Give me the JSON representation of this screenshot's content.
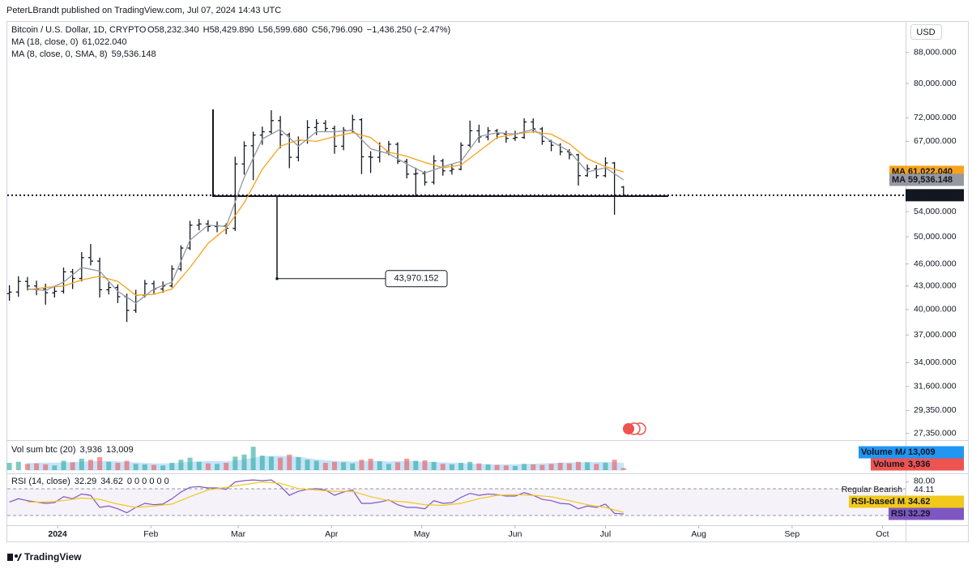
{
  "header": {
    "title": "PeterLBrandt published on TradingView.com, Jul 07, 2024 14:43 UTC"
  },
  "footer": {
    "brand": "TradingView"
  },
  "chart_data": [
    {
      "type": "ohlc",
      "title": "Bitcoin / U.S. Dollar, 1D, CRYPTO",
      "legend_values": [
        "O58,232.340",
        "H58,429.890",
        "L56,599.680",
        "C56,796.090",
        "−1,436.250 (−2.47%)"
      ],
      "unit": "USD",
      "color": "#131722",
      "log_scale": true,
      "last_label": "56,796.090",
      "xlim": [
        -16.7,
        281.7
      ],
      "xticks": [
        {
          "value": 0,
          "label": "2024"
        },
        {
          "value": 31,
          "label": "Feb"
        },
        {
          "value": 60,
          "label": "Mar"
        },
        {
          "value": 91,
          "label": "Apr"
        },
        {
          "value": 121,
          "label": "May"
        },
        {
          "value": 152,
          "label": "Jun"
        },
        {
          "value": 182,
          "label": "Jul"
        },
        {
          "value": 213,
          "label": "Aug"
        },
        {
          "value": 244,
          "label": "Sep"
        },
        {
          "value": 274,
          "label": "Oct"
        }
      ],
      "ylim": [
        27000,
        96400
      ],
      "yticks": [
        {
          "value": 88000,
          "label": "88,000.000"
        },
        {
          "value": 80000,
          "label": "80,000.000"
        },
        {
          "value": 72000,
          "label": "72,000.000"
        },
        {
          "value": 67000,
          "label": "67,000.000"
        },
        {
          "value": 54000,
          "label": "54,000.000"
        },
        {
          "value": 50000,
          "label": "50,000.000"
        },
        {
          "value": 46000,
          "label": "46,000.000"
        },
        {
          "value": 43000,
          "label": "43,000.000"
        },
        {
          "value": 40000,
          "label": "40,000.000"
        },
        {
          "value": 37000,
          "label": "37,000.000"
        },
        {
          "value": 34000,
          "label": "34,000.000"
        },
        {
          "value": 31600,
          "label": "31,600.000"
        },
        {
          "value": 29350,
          "label": "29,350.000"
        },
        {
          "value": 27350,
          "label": "27,350.000"
        }
      ],
      "x": [
        -16,
        -13,
        -10,
        -7,
        -4,
        -1,
        2,
        5,
        8,
        11,
        14,
        17,
        20,
        23,
        26,
        29,
        32,
        35,
        38,
        41,
        44,
        47,
        50,
        53,
        56,
        59,
        62,
        65,
        68,
        71,
        74,
        77,
        80,
        83,
        86,
        89,
        92,
        95,
        98,
        101,
        104,
        107,
        110,
        113,
        116,
        119,
        122,
        125,
        128,
        131,
        134,
        137,
        140,
        143,
        146,
        149,
        152,
        155,
        158,
        161,
        164,
        167,
        170,
        173,
        176,
        179,
        182,
        185,
        188
      ],
      "open": [
        42000,
        42200,
        43600,
        43000,
        42600,
        42100,
        42300,
        44900,
        44000,
        46900,
        46400,
        42500,
        42800,
        41600,
        39900,
        41800,
        43300,
        42600,
        43000,
        45300,
        48300,
        51800,
        52000,
        51600,
        51700,
        51300,
        62500,
        66100,
        68300,
        69000,
        71400,
        68400,
        63800,
        67200,
        69900,
        70800,
        69700,
        66000,
        69300,
        71600,
        63900,
        63800,
        64900,
        66400,
        63000,
        60600,
        60700,
        59100,
        63100,
        61200,
        61500,
        66200,
        69200,
        67900,
        69200,
        68500,
        67600,
        67800,
        71100,
        69600,
        67000,
        66200,
        64900,
        64300,
        60300,
        61600,
        60300,
        62700,
        58232.34
      ],
      "high": [
        43100,
        44300,
        44200,
        43700,
        43300,
        43000,
        45500,
        45300,
        47700,
        48900,
        46900,
        43500,
        43200,
        42000,
        42500,
        43800,
        43700,
        43600,
        45800,
        48700,
        52500,
        52800,
        52600,
        52400,
        52100,
        63900,
        67000,
        69000,
        70100,
        73700,
        72400,
        68800,
        68000,
        71500,
        71700,
        71500,
        70300,
        70000,
        72700,
        71900,
        65000,
        66800,
        67100,
        66800,
        63500,
        61800,
        61200,
        64200,
        63500,
        62400,
        66800,
        71400,
        70500,
        70000,
        69600,
        69200,
        69200,
        71900,
        71900,
        70000,
        67300,
        66600,
        65400,
        64500,
        62400,
        62300,
        63800,
        62900,
        58429.89
      ],
      "low": [
        41100,
        41600,
        42400,
        41800,
        40600,
        41500,
        42000,
        42600,
        43600,
        45800,
        41500,
        41900,
        40800,
        38500,
        39600,
        41500,
        42000,
        42100,
        42800,
        45000,
        48000,
        51000,
        50800,
        50700,
        50400,
        50900,
        60500,
        59500,
        66300,
        68500,
        65600,
        61700,
        63000,
        66500,
        68300,
        69000,
        64500,
        65200,
        68800,
        60600,
        60800,
        62800,
        64200,
        62500,
        59800,
        56600,
        58500,
        58700,
        60300,
        60500,
        61300,
        65800,
        66700,
        67200,
        67500,
        66700,
        67100,
        67500,
        68800,
        66300,
        65000,
        64200,
        63400,
        58500,
        60100,
        59800,
        60000,
        53500,
        56599.68
      ],
      "close": [
        42200,
        43600,
        43000,
        42600,
        42100,
        42300,
        44900,
        44000,
        46900,
        46400,
        42500,
        42800,
        41600,
        39900,
        41800,
        43300,
        42600,
        43000,
        45300,
        48300,
        51800,
        52000,
        51600,
        51700,
        51300,
        62500,
        66100,
        68300,
        69000,
        71400,
        68400,
        63800,
        67200,
        69900,
        70800,
        69700,
        66000,
        69300,
        71600,
        63900,
        63800,
        64900,
        66400,
        63000,
        60600,
        60700,
        59100,
        63100,
        61200,
        61500,
        66200,
        69200,
        67900,
        69200,
        68500,
        67600,
        67800,
        71100,
        69600,
        67000,
        66200,
        64900,
        64300,
        60300,
        61600,
        60300,
        62700,
        56700,
        56796.09
      ],
      "series": [
        {
          "name": "MA (18, close, 0)",
          "badge": "MA",
          "color": "#f7a21b",
          "last_label": "61,022.040",
          "x": [
            -10,
            -4,
            2,
            8,
            14,
            20,
            26,
            32,
            38,
            44,
            50,
            56,
            62,
            68,
            74,
            80,
            86,
            92,
            98,
            104,
            110,
            116,
            122,
            128,
            134,
            140,
            146,
            152,
            158,
            164,
            170,
            176,
            182,
            188
          ],
          "values": [
            42500,
            42800,
            43000,
            43800,
            44300,
            43600,
            41800,
            41900,
            42600,
            45500,
            49000,
            51300,
            55500,
            61500,
            66000,
            67300,
            67000,
            68000,
            68800,
            67800,
            64800,
            64000,
            62800,
            61800,
            62300,
            65000,
            67800,
            68500,
            69000,
            68500,
            66500,
            63500,
            62000,
            61022.04
          ]
        },
        {
          "name": "MA (8, close, 0, SMA, 8)",
          "badge": "MA",
          "color": "#9598a1",
          "last_label": "59,536.148",
          "x": [
            -10,
            -4,
            2,
            8,
            14,
            20,
            26,
            32,
            38,
            44,
            50,
            56,
            62,
            68,
            74,
            80,
            86,
            92,
            98,
            104,
            110,
            116,
            122,
            128,
            134,
            140,
            146,
            152,
            158,
            164,
            170,
            176,
            182,
            188
          ],
          "values": [
            42600,
            42400,
            43500,
            45500,
            45000,
            42300,
            40800,
            42600,
            43500,
            49500,
            51800,
            51600,
            60000,
            67500,
            69500,
            66000,
            69000,
            69000,
            69300,
            65500,
            64500,
            62500,
            60800,
            62000,
            63000,
            68000,
            68800,
            68500,
            69500,
            67000,
            65000,
            61000,
            61800,
            59536.148
          ]
        }
      ],
      "annotations": [
        {
          "label": "43,970.152",
          "value": 43970.152
        }
      ]
    },
    {
      "type": "bar",
      "title": "Vol sum btc (20)",
      "ylim": [
        0,
        50000
      ],
      "up_color": "#26a69a",
      "x": [
        -16,
        -13,
        -10,
        -7,
        -4,
        -1,
        2,
        5,
        8,
        11,
        14,
        17,
        20,
        23,
        26,
        29,
        32,
        35,
        38,
        41,
        44,
        47,
        50,
        53,
        56,
        59,
        62,
        65,
        68,
        71,
        74,
        77,
        80,
        83,
        86,
        89,
        92,
        95,
        98,
        101,
        104,
        107,
        110,
        113,
        116,
        119,
        122,
        125,
        128,
        131,
        134,
        137,
        140,
        143,
        146,
        149,
        152,
        155,
        158,
        161,
        164,
        167,
        170,
        173,
        176,
        179,
        182,
        185,
        188
      ],
      "series": [
        {
          "name": "Volume",
          "color": "#ef5350",
          "last_label": "3,936",
          "values": [
            14000,
            16000,
            12000,
            13000,
            11000,
            9000,
            18000,
            15000,
            22000,
            20000,
            25000,
            16000,
            14000,
            18000,
            12000,
            11000,
            10000,
            9000,
            14000,
            20000,
            24000,
            16000,
            13000,
            12000,
            14000,
            26000,
            30000,
            45000,
            28000,
            26000,
            24000,
            30000,
            25000,
            20000,
            18000,
            14000,
            16000,
            15000,
            13000,
            20000,
            22000,
            17000,
            12000,
            15000,
            22000,
            18000,
            19000,
            16000,
            12000,
            11000,
            14000,
            16000,
            13000,
            11000,
            10000,
            9000,
            8000,
            12000,
            11000,
            10000,
            12000,
            14000,
            13000,
            16000,
            15000,
            12000,
            14000,
            20000,
            3936
          ]
        },
        {
          "name": "Volume MA",
          "color": "#2196f3",
          "last_label": "13,009",
          "x": [
            -10,
            -4,
            2,
            8,
            14,
            20,
            26,
            32,
            38,
            44,
            50,
            56,
            62,
            68,
            74,
            80,
            86,
            92,
            98,
            104,
            110,
            116,
            122,
            128,
            134,
            140,
            146,
            152,
            158,
            164,
            170,
            176,
            182,
            188
          ],
          "values": [
            13000,
            13500,
            14000,
            15500,
            17000,
            16000,
            14000,
            12000,
            12500,
            15000,
            17000,
            16000,
            20000,
            26000,
            27000,
            25000,
            20000,
            17000,
            16000,
            17000,
            16000,
            17000,
            15000,
            14000,
            13000,
            11000,
            10000,
            10500,
            11500,
            13000,
            14000,
            14500,
            15000,
            13009
          ]
        }
      ]
    },
    {
      "type": "line",
      "title": "RSI (14, close)",
      "legend_extra": "0 0 0 0 0 0",
      "ylim": [
        19,
        88
      ],
      "yticks": [
        {
          "value": 80,
          "label": "80.00"
        }
      ],
      "x": [
        -16,
        -13,
        -10,
        -7,
        -4,
        -1,
        2,
        5,
        8,
        11,
        14,
        17,
        20,
        23,
        26,
        29,
        32,
        35,
        38,
        41,
        44,
        47,
        50,
        53,
        56,
        59,
        62,
        65,
        68,
        71,
        74,
        77,
        80,
        83,
        86,
        89,
        92,
        95,
        98,
        101,
        104,
        107,
        110,
        113,
        116,
        119,
        122,
        125,
        128,
        131,
        134,
        137,
        140,
        143,
        146,
        149,
        152,
        155,
        158,
        161,
        164,
        167,
        170,
        173,
        176,
        179,
        182,
        185,
        188
      ],
      "series": [
        {
          "name": "RSI",
          "color": "#7e57c2",
          "values": [
            50,
            55,
            52,
            50,
            48,
            49,
            58,
            55,
            62,
            60,
            42,
            44,
            40,
            34,
            42,
            48,
            46,
            47,
            55,
            65,
            72,
            73,
            71,
            71,
            69,
            80,
            82,
            83,
            82,
            83,
            74,
            60,
            66,
            69,
            70,
            68,
            60,
            65,
            68,
            48,
            48,
            50,
            53,
            46,
            42,
            42,
            40,
            52,
            48,
            49,
            57,
            63,
            60,
            62,
            61,
            59,
            59,
            64,
            60,
            54,
            52,
            48,
            47,
            40,
            44,
            42,
            47,
            33,
            32.29
          ]
        },
        {
          "name": "RSI-based MA",
          "color": "#f2c81b",
          "x": [
            -10,
            -4,
            2,
            8,
            14,
            20,
            26,
            32,
            38,
            44,
            50,
            56,
            62,
            68,
            74,
            80,
            86,
            92,
            98,
            104,
            110,
            116,
            122,
            128,
            134,
            140,
            146,
            152,
            158,
            164,
            170,
            176,
            182,
            188
          ],
          "values": [
            50,
            50,
            52,
            56,
            54,
            47,
            42,
            44,
            47,
            58,
            68,
            72,
            76,
            80,
            78,
            70,
            68,
            66,
            66,
            58,
            52,
            50,
            46,
            45,
            48,
            55,
            60,
            61,
            60,
            58,
            52,
            46,
            42,
            34.62
          ]
        }
      ],
      "divergence": {
        "name": "Regular Bearish",
        "value": 44.11
      }
    }
  ]
}
